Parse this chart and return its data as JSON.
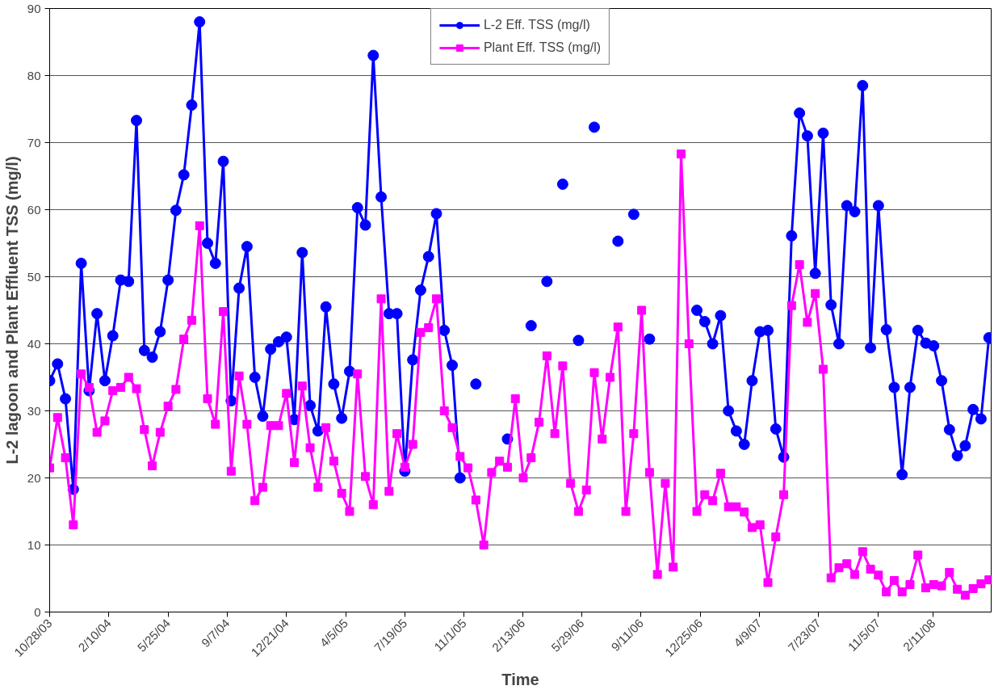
{
  "chart_data": {
    "type": "line",
    "xlabel": "Time",
    "ylabel": "L-2 lagoon and Plant Effluent TSS (mg/l)",
    "x": [
      "2003-10-28",
      "2003-11-11",
      "2003-11-25",
      "2003-12-09",
      "2003-12-23",
      "2004-01-06",
      "2004-01-20",
      "2004-02-03",
      "2004-02-17",
      "2004-03-02",
      "2004-03-16",
      "2004-03-30",
      "2004-04-13",
      "2004-04-27",
      "2004-05-11",
      "2004-05-25",
      "2004-06-08",
      "2004-06-22",
      "2004-07-06",
      "2004-07-20",
      "2004-08-03",
      "2004-08-17",
      "2004-08-31",
      "2004-09-14",
      "2004-09-28",
      "2004-10-12",
      "2004-10-26",
      "2004-11-09",
      "2004-11-23",
      "2004-12-07",
      "2004-12-21",
      "2005-01-04",
      "2005-01-18",
      "2005-02-01",
      "2005-02-15",
      "2005-03-01",
      "2005-03-15",
      "2005-03-29",
      "2005-04-12",
      "2005-04-26",
      "2005-05-10",
      "2005-05-24",
      "2005-06-07",
      "2005-06-21",
      "2005-07-05",
      "2005-07-19",
      "2005-08-02",
      "2005-08-16",
      "2005-08-30",
      "2005-09-13",
      "2005-09-27",
      "2005-10-11",
      "2005-10-25",
      "2005-11-08",
      "2005-11-22",
      "2005-12-06",
      "2005-12-20",
      "2006-01-03",
      "2006-01-17",
      "2006-01-31",
      "2006-02-14",
      "2006-02-28",
      "2006-03-14",
      "2006-03-28",
      "2006-04-11",
      "2006-04-25",
      "2006-05-09",
      "2006-05-23",
      "2006-06-06",
      "2006-06-20",
      "2006-07-04",
      "2006-07-18",
      "2006-08-01",
      "2006-08-15",
      "2006-08-29",
      "2006-09-12",
      "2006-09-26",
      "2006-10-10",
      "2006-10-24",
      "2006-11-07",
      "2006-11-21",
      "2006-12-05",
      "2006-12-19",
      "2007-01-02",
      "2007-01-16",
      "2007-01-30",
      "2007-02-13",
      "2007-02-27",
      "2007-03-13",
      "2007-03-27",
      "2007-04-10",
      "2007-04-24",
      "2007-05-08",
      "2007-05-22",
      "2007-06-05",
      "2007-06-19",
      "2007-07-03",
      "2007-07-17",
      "2007-07-31",
      "2007-08-14",
      "2007-08-28",
      "2007-09-11",
      "2007-09-25",
      "2007-10-09",
      "2007-10-23",
      "2007-11-06",
      "2007-11-20",
      "2007-12-04",
      "2007-12-18",
      "2008-01-01",
      "2008-01-15",
      "2008-01-29",
      "2008-02-12",
      "2008-02-26",
      "2008-03-11",
      "2008-03-25",
      "2008-04-08",
      "2008-04-22",
      "2008-05-06",
      "2008-05-20"
    ],
    "series": [
      {
        "name": "L-2 Eff. TSS (mg/l)",
        "color": "#0000ff",
        "marker": "circle",
        "values": [
          34.5,
          37,
          31.8,
          18.3,
          52,
          33,
          44.5,
          34.5,
          41.2,
          49.5,
          49.3,
          73.3,
          39,
          38,
          41.8,
          49.5,
          59.9,
          65.2,
          75.6,
          88,
          55,
          52,
          67.2,
          31.5,
          48.3,
          54.5,
          35,
          29.2,
          39.2,
          40.3,
          41,
          28.7,
          53.6,
          30.8,
          27,
          45.5,
          34,
          28.9,
          35.9,
          60.3,
          57.7,
          83,
          61.9,
          44.5,
          44.5,
          21,
          37.6,
          48,
          53,
          59.4,
          42,
          36.8,
          20,
          null,
          34,
          null,
          null,
          null,
          25.8,
          null,
          null,
          42.7,
          null,
          49.3,
          null,
          63.8,
          null,
          40.5,
          null,
          72.3,
          null,
          null,
          55.3,
          null,
          59.3,
          null,
          40.7,
          null,
          null,
          null,
          null,
          null,
          45,
          43.3,
          40,
          44.2,
          30,
          27,
          25,
          34.5,
          41.8,
          42,
          27.3,
          23.1,
          56.1,
          74.4,
          71,
          50.5,
          71.4,
          45.8,
          40,
          60.6,
          59.7,
          78.5,
          39.4,
          60.6,
          42.1,
          33.5,
          20.5,
          33.5,
          42,
          40.1,
          39.7,
          34.5,
          27.2,
          23.3,
          24.8,
          30.2,
          28.8,
          40.9
        ]
      },
      {
        "name": "Plant Eff. TSS (mg/l)",
        "color": "#ff00ff",
        "marker": "square",
        "values": [
          21.5,
          29,
          23,
          13,
          35.5,
          33.5,
          26.8,
          28.5,
          33,
          33.5,
          35,
          33.3,
          27.2,
          21.8,
          26.8,
          30.7,
          33.2,
          40.7,
          43.5,
          57.6,
          31.8,
          28,
          44.8,
          21,
          35.2,
          28,
          16.6,
          18.6,
          27.8,
          27.8,
          32.6,
          22.3,
          33.7,
          24.5,
          18.6,
          27.5,
          22.5,
          17.7,
          15,
          35.5,
          20.2,
          16,
          46.7,
          18,
          26.6,
          21.6,
          25,
          41.7,
          42.4,
          46.7,
          30,
          27.5,
          23.2,
          21.5,
          16.7,
          10,
          20.8,
          22.5,
          21.6,
          31.8,
          20,
          23,
          28.3,
          38.2,
          26.6,
          36.7,
          19.2,
          15,
          18.2,
          35.7,
          25.8,
          35,
          42.5,
          15,
          26.6,
          45,
          20.8,
          5.6,
          19.2,
          6.7,
          68.3,
          40,
          15,
          17.5,
          16.6,
          20.7,
          15.7,
          15.7,
          14.9,
          12.6,
          13,
          4.4,
          11.2,
          17.5,
          45.7,
          51.8,
          43.2,
          47.5,
          36.2,
          5.1,
          6.6,
          7.2,
          5.6,
          9,
          6.4,
          5.5,
          3,
          4.7,
          3,
          4.1,
          8.5,
          3.6,
          4.1,
          3.9,
          5.9,
          3.4,
          2.5,
          3.5,
          4.2,
          4.8
        ]
      }
    ],
    "xlim": [
      "2003-10-28",
      "2008-05-24"
    ],
    "xticks": [
      {
        "value": "2003-10-28",
        "label": "10/28/03"
      },
      {
        "value": "2004-02-10",
        "label": "2/10/04"
      },
      {
        "value": "2004-05-25",
        "label": "5/25/04"
      },
      {
        "value": "2004-09-07",
        "label": "9/7/04"
      },
      {
        "value": "2004-12-21",
        "label": "12/21/04"
      },
      {
        "value": "2005-04-05",
        "label": "4/5/05"
      },
      {
        "value": "2005-07-19",
        "label": "7/19/05"
      },
      {
        "value": "2005-11-01",
        "label": "11/1/05"
      },
      {
        "value": "2006-02-13",
        "label": "2/13/06"
      },
      {
        "value": "2006-05-29",
        "label": "5/29/06"
      },
      {
        "value": "2006-09-11",
        "label": "9/11/06"
      },
      {
        "value": "2006-12-25",
        "label": "12/25/06"
      },
      {
        "value": "2007-04-09",
        "label": "4/9/07"
      },
      {
        "value": "2007-07-23",
        "label": "7/23/07"
      },
      {
        "value": "2007-11-05",
        "label": "11/5/07"
      },
      {
        "value": "2008-02-11",
        "label": "2/11/08"
      }
    ],
    "ylim": [
      0,
      90
    ],
    "yticks": [
      0,
      10,
      20,
      30,
      40,
      50,
      60,
      70,
      80,
      90
    ],
    "grid": "y",
    "legend": "top",
    "line_style": "solid"
  }
}
